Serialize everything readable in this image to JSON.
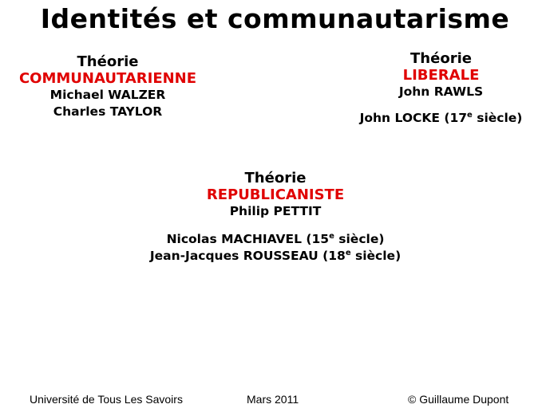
{
  "title": "Identités et communautarisme",
  "communautarienne": {
    "heading": "Théorie",
    "name": "COMMUNAUTARIENNE",
    "authors": [
      "Michael WALZER",
      "Charles TAYLOR"
    ]
  },
  "liberale": {
    "heading": "Théorie",
    "name": "LIBERALE",
    "author1": "John RAWLS",
    "author2_name": "John LOCKE (17",
    "author2_sup": "e",
    "author2_tail": " siècle)"
  },
  "republicaniste": {
    "heading": "Théorie",
    "name": "REPUBLICANISTE",
    "author1": "Philip PETTIT",
    "author2_name": "Nicolas MACHIAVEL (15",
    "author2_sup": "e",
    "author2_tail": " siècle)",
    "author3_name": "Jean-Jacques ROUSSEAU (18",
    "author3_sup": "e",
    "author3_tail": " siècle)"
  },
  "footer": {
    "left": "Université de Tous Les Savoirs",
    "center": "Mars 2011",
    "right": "© Guillaume Dupont"
  }
}
